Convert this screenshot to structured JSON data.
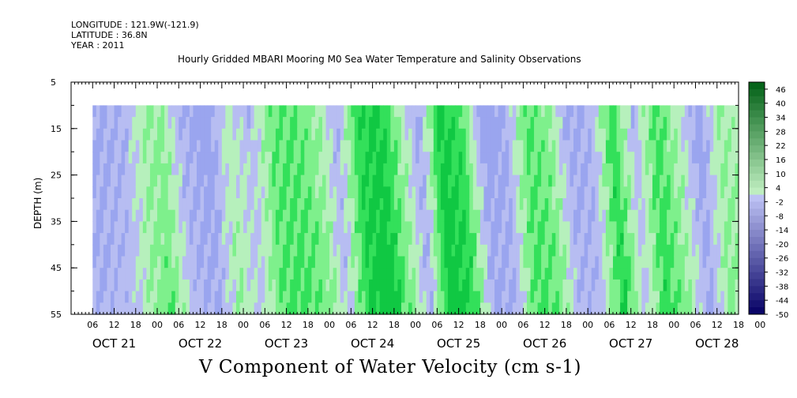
{
  "header": {
    "longitude": "LONGITUDE : 121.9W(-121.9)",
    "latitude": "LATITUDE : 36.8N",
    "year": "YEAR : 2011"
  },
  "chart_data": {
    "type": "heatmap",
    "title": "Hourly Gridded MBARI Mooring M0 Sea Water Temperature and Salinity Observations",
    "footer_label": "V Component of Water Velocity (cm s-1)",
    "ylabel": "DEPTH (m)",
    "y_axis": {
      "range": [
        5,
        55
      ],
      "reversed": true,
      "tick_labels": [
        "5",
        "15",
        "25",
        "35",
        "45",
        "55"
      ],
      "tick_values": [
        5,
        15,
        25,
        35,
        45,
        55
      ]
    },
    "x_axis": {
      "range_hours": [
        0,
        186
      ],
      "hour_tick_labels": [
        "06",
        "12",
        "18",
        "00",
        "06",
        "12",
        "18",
        "00",
        "06",
        "12",
        "18",
        "00",
        "06",
        "12",
        "18",
        "00",
        "06",
        "12",
        "18",
        "00",
        "06",
        "12",
        "18",
        "00",
        "06",
        "12",
        "18",
        "00",
        "06",
        "12",
        "18",
        "00"
      ],
      "day_labels": [
        "OCT 21",
        "OCT 22",
        "OCT 23",
        "OCT 24",
        "OCT 25",
        "OCT 26",
        "OCT 27",
        "OCT 28"
      ]
    },
    "data_depth_range": [
      10,
      55
    ],
    "data_time_range_hours": [
      6,
      186
    ],
    "colorbar": {
      "labels": [
        "46",
        "40",
        "34",
        "28",
        "22",
        "16",
        "10",
        "4",
        "-2",
        "-8",
        "-14",
        "-20",
        "-26",
        "-32",
        "-38",
        "-44",
        "-50"
      ],
      "range": [
        -50,
        49
      ]
    },
    "colors": {
      "neg_pale": "#b7bdf2",
      "neg_light": "#9aa5ef",
      "neg_mid": "#7a88ea",
      "pos_pale": "#b6f0bc",
      "pos_light": "#7ef08c",
      "pos_mid": "#33e05a",
      "pos_strong": "#10c843"
    },
    "bands": [
      {
        "t": 6,
        "v": -8
      },
      {
        "t": 14,
        "v": -5
      },
      {
        "t": 19,
        "v": 4
      },
      {
        "t": 24,
        "v": 8
      },
      {
        "t": 30,
        "v": -6
      },
      {
        "t": 37,
        "v": -10
      },
      {
        "t": 43,
        "v": 3
      },
      {
        "t": 49,
        "v": -4
      },
      {
        "t": 55,
        "v": 10
      },
      {
        "t": 61,
        "v": 12
      },
      {
        "t": 68,
        "v": 6
      },
      {
        "t": 73,
        "v": -6
      },
      {
        "t": 79,
        "v": 16
      },
      {
        "t": 85,
        "v": 20
      },
      {
        "t": 91,
        "v": 5
      },
      {
        "t": 96,
        "v": -8
      },
      {
        "t": 102,
        "v": 20
      },
      {
        "t": 108,
        "v": 14
      },
      {
        "t": 114,
        "v": -10
      },
      {
        "t": 120,
        "v": -8
      },
      {
        "t": 126,
        "v": 12
      },
      {
        "t": 132,
        "v": 8
      },
      {
        "t": 138,
        "v": -8
      },
      {
        "t": 144,
        "v": -6
      },
      {
        "t": 150,
        "v": 16
      },
      {
        "t": 156,
        "v": -5
      },
      {
        "t": 162,
        "v": 14
      },
      {
        "t": 168,
        "v": 4
      },
      {
        "t": 174,
        "v": -10
      },
      {
        "t": 180,
        "v": 6
      },
      {
        "t": 186,
        "v": 2
      }
    ]
  }
}
